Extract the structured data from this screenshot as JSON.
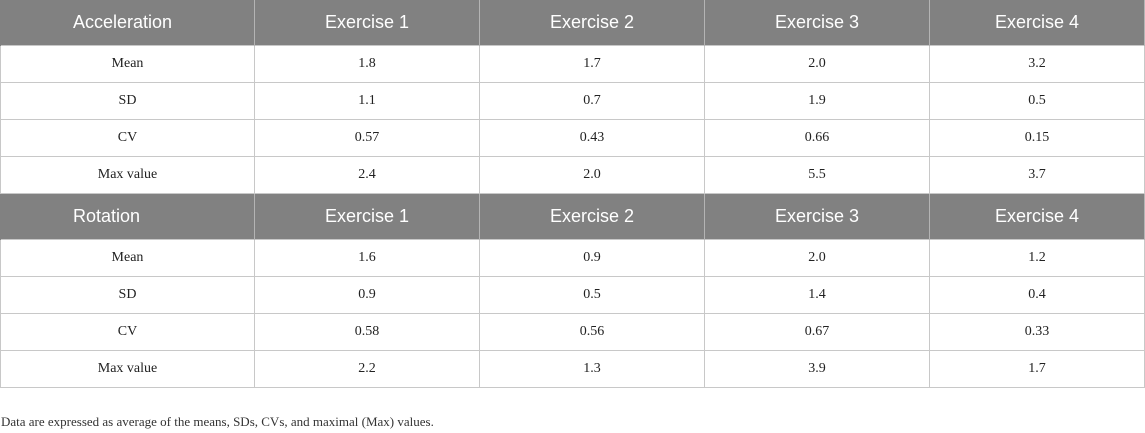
{
  "sections": [
    {
      "title": "Acceleration",
      "columns": [
        "Exercise 1",
        "Exercise 2",
        "Exercise 3",
        "Exercise 4"
      ],
      "rows": [
        {
          "label": "Mean",
          "values": [
            "1.8",
            "1.7",
            "2.0",
            "3.2"
          ]
        },
        {
          "label": "SD",
          "values": [
            "1.1",
            "0.7",
            "1.9",
            "0.5"
          ]
        },
        {
          "label": "CV",
          "values": [
            "0.57",
            "0.43",
            "0.66",
            "0.15"
          ]
        },
        {
          "label": "Max value",
          "values": [
            "2.4",
            "2.0",
            "5.5",
            "3.7"
          ]
        }
      ]
    },
    {
      "title": "Rotation",
      "columns": [
        "Exercise 1",
        "Exercise 2",
        "Exercise 3",
        "Exercise 4"
      ],
      "rows": [
        {
          "label": "Mean",
          "values": [
            "1.6",
            "0.9",
            "2.0",
            "1.2"
          ]
        },
        {
          "label": "SD",
          "values": [
            "0.9",
            "0.5",
            "1.4",
            "0.4"
          ]
        },
        {
          "label": "CV",
          "values": [
            "0.58",
            "0.56",
            "0.67",
            "0.33"
          ]
        },
        {
          "label": "Max value",
          "values": [
            "2.2",
            "1.3",
            "3.9",
            "1.7"
          ]
        }
      ]
    }
  ],
  "footnote": "Data are expressed as average of the means, SDs, CVs, and maximal (Max) values."
}
